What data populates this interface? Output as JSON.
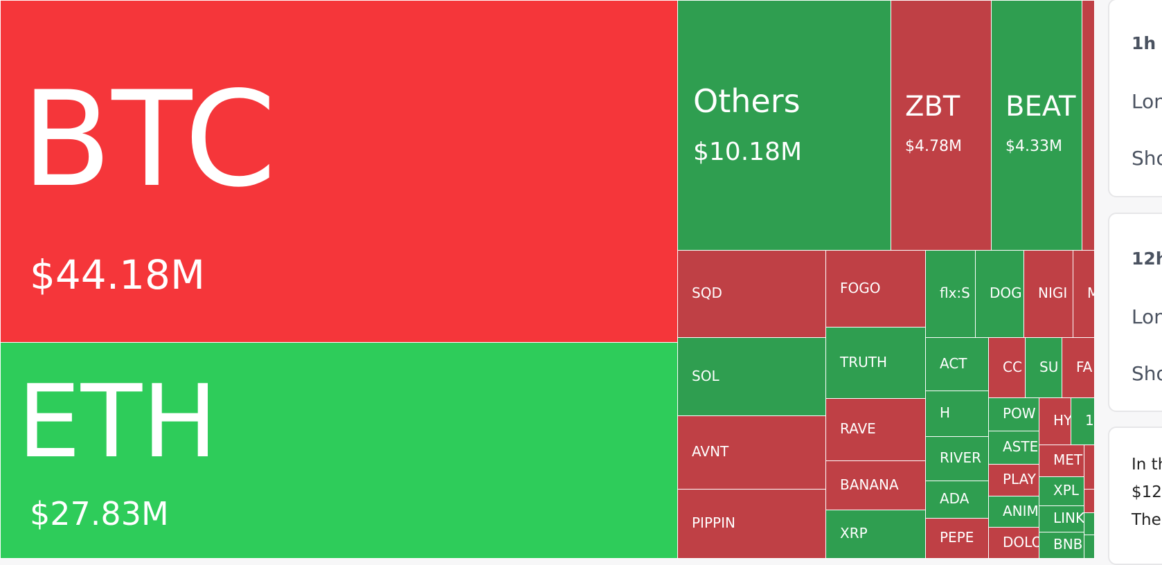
{
  "colors": {
    "btc_red": "#f5363a",
    "eth_green": "#2ecc5a",
    "green": "#2f9e50",
    "red": "#bf4045"
  },
  "tiles": [
    {
      "label": "BTC",
      "value": "$44.18M",
      "color": "btc_red"
    },
    {
      "label": "ETH",
      "value": "$27.83M",
      "color": "eth_green"
    },
    {
      "label": "Others",
      "value": "$10.18M",
      "color": "green"
    },
    {
      "label": "ZBT",
      "value": "$4.78M",
      "color": "red"
    },
    {
      "label": "BEAT",
      "value": "$4.33M",
      "color": "green"
    },
    {
      "label": "",
      "color": "red"
    },
    {
      "label": "SQD",
      "color": "red"
    },
    {
      "label": "SOL",
      "color": "green"
    },
    {
      "label": "AVNT",
      "color": "red"
    },
    {
      "label": "PIPPIN",
      "color": "red"
    },
    {
      "label": "FOGO",
      "color": "red"
    },
    {
      "label": "TRUTH",
      "color": "green"
    },
    {
      "label": "RAVE",
      "color": "red"
    },
    {
      "label": "BANANA",
      "color": "red"
    },
    {
      "label": "XRP",
      "color": "green"
    },
    {
      "label": "flx:S",
      "color": "green"
    },
    {
      "label": "DOG",
      "color": "green"
    },
    {
      "label": "NIGI",
      "color": "red"
    },
    {
      "label": "M",
      "color": "red"
    },
    {
      "label": "ACT",
      "color": "green"
    },
    {
      "label": "H",
      "color": "green"
    },
    {
      "label": "RIVER",
      "color": "green"
    },
    {
      "label": "ADA",
      "color": "green"
    },
    {
      "label": "PEPE",
      "color": "red"
    },
    {
      "label": "CC",
      "color": "red"
    },
    {
      "label": "SU",
      "color": "green"
    },
    {
      "label": "FA",
      "color": "red"
    },
    {
      "label": "POW",
      "color": "green"
    },
    {
      "label": "ASTE",
      "color": "green"
    },
    {
      "label": "PLAY",
      "color": "red"
    },
    {
      "label": "ANIM",
      "color": "green"
    },
    {
      "label": "DOLO",
      "color": "red"
    },
    {
      "label": "HY",
      "color": "red"
    },
    {
      "label": "1",
      "color": "green"
    },
    {
      "label": "MET",
      "color": "red"
    },
    {
      "label": "XPL",
      "color": "green"
    },
    {
      "label": "LINK",
      "color": "green"
    },
    {
      "label": "BNB",
      "color": "green"
    },
    {
      "label": "",
      "color": "red"
    },
    {
      "label": "",
      "color": "red"
    },
    {
      "label": "",
      "color": "green"
    },
    {
      "label": "",
      "color": "green"
    }
  ],
  "cards": [
    {
      "title": "1h",
      "long": "Lon",
      "short": "Sho"
    },
    {
      "title": "12h",
      "long": "Lon",
      "short": "Sho"
    },
    {
      "lines": [
        "In th",
        "$12",
        "The"
      ]
    }
  ]
}
